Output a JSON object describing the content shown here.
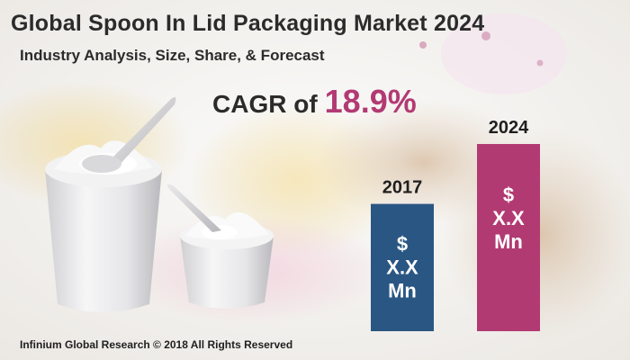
{
  "header": {
    "title": "Global Spoon In Lid Packaging Market 2024",
    "subtitle": "Industry Analysis, Size, Share, & Forecast"
  },
  "cagr": {
    "label": "CAGR of",
    "value": "18.9%"
  },
  "footer": {
    "text": "Infinium Global Research © 2018 All Rights Reserved"
  },
  "colors": {
    "bar_2017": "#2a5683",
    "bar_2024": "#b23a73",
    "accent": "#b23a73"
  },
  "illustration": {
    "subject": "yogurt cups with spoons in lids"
  },
  "chart_data": {
    "type": "bar",
    "categories": [
      "2017",
      "2024"
    ],
    "bar_labels": [
      "$ X.X Mn",
      "$ X.X Mn"
    ],
    "relative_heights": [
      0.68,
      1.0
    ],
    "title": "",
    "xlabel": "",
    "ylabel": "",
    "grid": false,
    "legend": "none"
  }
}
